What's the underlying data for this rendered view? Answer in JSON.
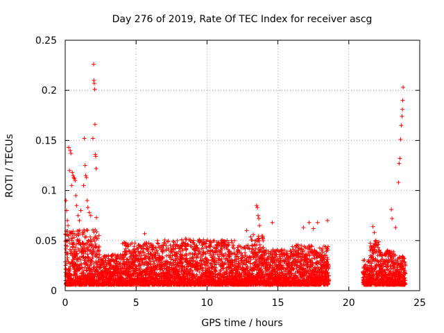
{
  "chart_data": {
    "type": "scatter",
    "title": "Day 276 of 2019, Rate Of TEC Index for receiver ascg",
    "xlabel": "GPS time / hours",
    "ylabel": "ROTI / TECUs",
    "xlim": [
      0,
      25
    ],
    "ylim": [
      0,
      0.25
    ],
    "xticks": [
      0,
      5,
      10,
      15,
      20,
      25
    ],
    "yticks": [
      0,
      0.05,
      0.1,
      0.15,
      0.2,
      0.25
    ],
    "xtick_labels": [
      "0",
      "5",
      "10",
      "15",
      "20",
      "25"
    ],
    "ytick_labels": [
      "0",
      "0.05",
      "0.1",
      "0.15",
      "0.2",
      "0.25"
    ],
    "grid": true,
    "marker": "+",
    "color": "#ff0000",
    "data_gaps_hours": [
      [
        18.6,
        21.0
      ]
    ],
    "series": [
      {
        "name": "ROTI",
        "description_points": [
          [
            0.05,
            0.09
          ],
          [
            0.1,
            0.08
          ],
          [
            0.15,
            0.07
          ],
          [
            0.2,
            0.065
          ],
          [
            0.25,
            0.143
          ],
          [
            0.3,
            0.12
          ],
          [
            0.35,
            0.14
          ],
          [
            0.4,
            0.137
          ],
          [
            0.45,
            0.105
          ],
          [
            0.5,
            0.118
          ],
          [
            0.55,
            0.115
          ],
          [
            0.6,
            0.113
          ],
          [
            0.65,
            0.112
          ],
          [
            0.7,
            0.11
          ],
          [
            0.75,
            0.095
          ],
          [
            0.8,
            0.085
          ],
          [
            0.9,
            0.075
          ],
          [
            1.0,
            0.07
          ],
          [
            1.1,
            0.08
          ],
          [
            1.3,
            0.105
          ],
          [
            1.35,
            0.152
          ],
          [
            1.4,
            0.125
          ],
          [
            1.45,
            0.115
          ],
          [
            1.5,
            0.113
          ],
          [
            1.55,
            0.09
          ],
          [
            1.6,
            0.083
          ],
          [
            1.7,
            0.078
          ],
          [
            1.8,
            0.075
          ],
          [
            1.95,
            0.152
          ],
          [
            2.0,
            0.226
          ],
          [
            2.02,
            0.21
          ],
          [
            2.05,
            0.207
          ],
          [
            2.08,
            0.201
          ],
          [
            2.1,
            0.166
          ],
          [
            2.12,
            0.136
          ],
          [
            2.15,
            0.134
          ],
          [
            2.18,
            0.122
          ],
          [
            2.2,
            0.073
          ],
          [
            2.3,
            0.052
          ],
          [
            4.4,
            0.045
          ],
          [
            5.6,
            0.057
          ],
          [
            6.5,
            0.05
          ],
          [
            8.5,
            0.052
          ],
          [
            9.5,
            0.05
          ],
          [
            12.8,
            0.06
          ],
          [
            13.5,
            0.085
          ],
          [
            13.55,
            0.083
          ],
          [
            13.6,
            0.075
          ],
          [
            13.65,
            0.072
          ],
          [
            13.7,
            0.065
          ],
          [
            14.6,
            0.068
          ],
          [
            16.8,
            0.063
          ],
          [
            17.2,
            0.068
          ],
          [
            17.5,
            0.062
          ],
          [
            17.8,
            0.068
          ],
          [
            18.5,
            0.07
          ],
          [
            21.7,
            0.064
          ],
          [
            21.8,
            0.058
          ],
          [
            22.0,
            0.048
          ],
          [
            23.0,
            0.081
          ],
          [
            23.05,
            0.072
          ],
          [
            23.3,
            0.063
          ],
          [
            23.5,
            0.108
          ],
          [
            23.55,
            0.127
          ],
          [
            23.6,
            0.132
          ],
          [
            23.65,
            0.151
          ],
          [
            23.7,
            0.165
          ],
          [
            23.75,
            0.174
          ],
          [
            23.78,
            0.181
          ],
          [
            23.8,
            0.19
          ],
          [
            23.83,
            0.203
          ]
        ]
      }
    ]
  }
}
